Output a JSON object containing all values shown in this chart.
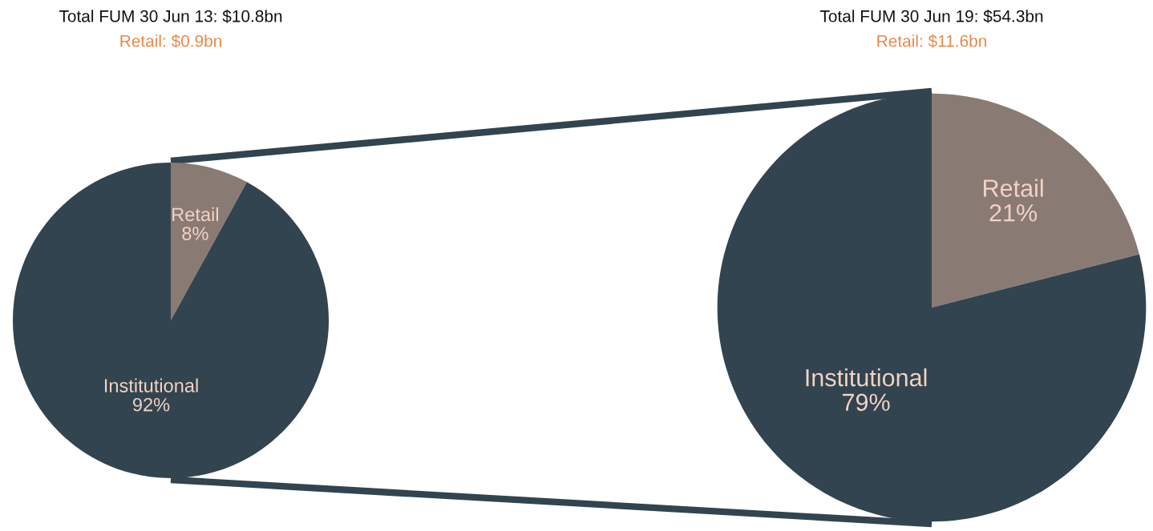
{
  "chart_data": [
    {
      "type": "pie",
      "title": "Total FUM 30 Jun 13: $10.8bn",
      "subtitle": "Retail: $0.9bn",
      "categories": [
        "Retail",
        "Institutional"
      ],
      "values": [
        8,
        92
      ],
      "value_labels": [
        "8%",
        "92%"
      ],
      "colors": [
        "#8a7a74",
        "#31444f"
      ],
      "legend": false
    },
    {
      "type": "pie",
      "title": "Total FUM 30 Jun 19: $54.3bn",
      "subtitle": "Retail: $11.6bn",
      "categories": [
        "Retail",
        "Institutional"
      ],
      "values": [
        21,
        79
      ],
      "value_labels": [
        "21%",
        "79%"
      ],
      "colors": [
        "#8a7a74",
        "#31444f"
      ],
      "legend": false
    }
  ]
}
